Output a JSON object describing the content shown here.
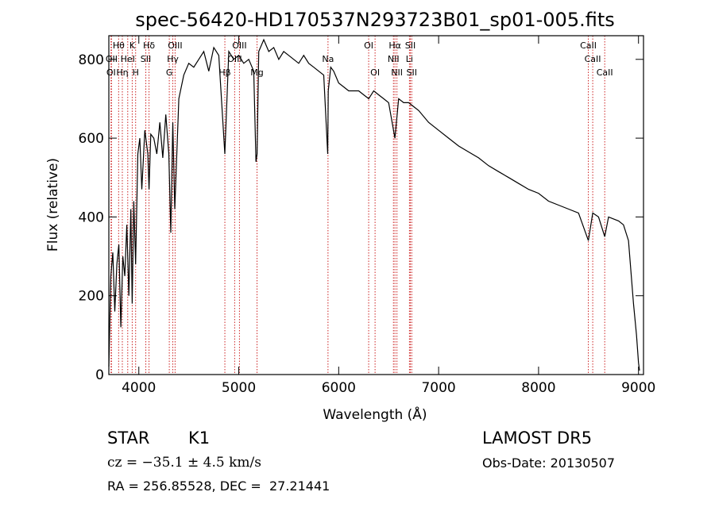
{
  "chart_data": {
    "type": "line",
    "title": "spec-56420-HD170537N293723B01_sp01-005.fits",
    "xlabel": "Wavelength (Å)",
    "ylabel": "Flux (relative)",
    "xlim": [
      3700,
      9050
    ],
    "ylim": [
      0,
      860
    ],
    "xticks": [
      4000,
      5000,
      6000,
      7000,
      8000,
      9000
    ],
    "yticks": [
      0,
      200,
      400,
      600,
      800
    ],
    "grid": false,
    "series": [
      {
        "x": [
          3700,
          3720,
          3740,
          3760,
          3780,
          3800,
          3820,
          3840,
          3860,
          3880,
          3900,
          3920,
          3934,
          3950,
          3968,
          3990,
          4010,
          4030,
          4060,
          4090,
          4102,
          4120,
          4150,
          4180,
          4210,
          4240,
          4270,
          4300,
          4320,
          4340,
          4360,
          4400,
          4450,
          4500,
          4550,
          4600,
          4650,
          4700,
          4750,
          4800,
          4861,
          4900,
          4950,
          5000,
          5050,
          5100,
          5150,
          5172,
          5183,
          5200,
          5250,
          5300,
          5350,
          5400,
          5450,
          5500,
          5550,
          5600,
          5650,
          5700,
          5750,
          5800,
          5850,
          5890,
          5896,
          5920,
          5950,
          6000,
          6050,
          6100,
          6150,
          6200,
          6250,
          6300,
          6350,
          6400,
          6450,
          6500,
          6563,
          6600,
          6650,
          6700,
          6750,
          6800,
          6900,
          7000,
          7100,
          7200,
          7300,
          7400,
          7500,
          7600,
          7700,
          7800,
          7900,
          8000,
          8100,
          8200,
          8300,
          8400,
          8498,
          8542,
          8600,
          8662,
          8700,
          8750,
          8800,
          8850,
          8900,
          8950,
          8980,
          9000,
          9010
        ],
        "y": [
          20,
          250,
          310,
          160,
          280,
          330,
          120,
          300,
          250,
          380,
          200,
          420,
          180,
          440,
          280,
          560,
          600,
          470,
          620,
          560,
          470,
          610,
          600,
          560,
          640,
          550,
          660,
          560,
          360,
          640,
          420,
          700,
          760,
          790,
          780,
          800,
          820,
          770,
          830,
          810,
          560,
          820,
          800,
          810,
          790,
          800,
          770,
          540,
          560,
          820,
          850,
          820,
          830,
          800,
          820,
          810,
          800,
          790,
          810,
          790,
          780,
          770,
          760,
          560,
          720,
          780,
          770,
          740,
          730,
          720,
          720,
          720,
          710,
          700,
          720,
          710,
          700,
          690,
          600,
          700,
          690,
          690,
          680,
          670,
          640,
          620,
          600,
          580,
          565,
          550,
          530,
          515,
          500,
          485,
          470,
          460,
          440,
          430,
          420,
          410,
          340,
          410,
          400,
          350,
          400,
          395,
          390,
          380,
          340,
          180,
          100,
          30,
          10
        ]
      }
    ],
    "line_labels": [
      {
        "label": "Hθ",
        "wavelength": 3798,
        "row": 1
      },
      {
        "label": "K",
        "wavelength": 3934,
        "row": 1
      },
      {
        "label": "Hδ",
        "wavelength": 4102,
        "row": 1
      },
      {
        "label": "OIII",
        "wavelength": 4363,
        "row": 1
      },
      {
        "label": "OIII",
        "wavelength": 5007,
        "row": 1
      },
      {
        "label": "OI",
        "wavelength": 6300,
        "row": 1
      },
      {
        "label": "Hα",
        "wavelength": 6563,
        "row": 1
      },
      {
        "label": "SII",
        "wavelength": 6717,
        "row": 1
      },
      {
        "label": "CaII",
        "wavelength": 8498,
        "row": 1
      },
      {
        "label": "OII",
        "wavelength": 3727,
        "row": 2
      },
      {
        "label": "HeI",
        "wavelength": 3889,
        "row": 2
      },
      {
        "label": "SII",
        "wavelength": 4070,
        "row": 2
      },
      {
        "label": "Hγ",
        "wavelength": 4340,
        "row": 2
      },
      {
        "label": "OIII",
        "wavelength": 4959,
        "row": 2
      },
      {
        "label": "Na",
        "wavelength": 5893,
        "row": 2
      },
      {
        "label": "NII",
        "wavelength": 6548,
        "row": 2
      },
      {
        "label": "Li",
        "wavelength": 6708,
        "row": 2
      },
      {
        "label": "CaII",
        "wavelength": 8542,
        "row": 2
      },
      {
        "label": "OI",
        "wavelength": 3722,
        "row": 3
      },
      {
        "label": "Hη",
        "wavelength": 3835,
        "row": 3
      },
      {
        "label": "H",
        "wavelength": 3968,
        "row": 3
      },
      {
        "label": "G",
        "wavelength": 4305,
        "row": 3
      },
      {
        "label": "Hβ",
        "wavelength": 4861,
        "row": 3
      },
      {
        "label": "Mg",
        "wavelength": 5183,
        "row": 3
      },
      {
        "label": "OI",
        "wavelength": 6364,
        "row": 3
      },
      {
        "label": "NII",
        "wavelength": 6583,
        "row": 3
      },
      {
        "label": "SII",
        "wavelength": 6731,
        "row": 3
      },
      {
        "label": "CaII",
        "wavelength": 8662,
        "row": 3
      }
    ],
    "colors": {
      "spectrum": "#000000",
      "line_markers": "#cc2222",
      "axes": "#000000"
    }
  },
  "info": {
    "object_class": "STAR",
    "subclass": "K1",
    "survey": "LAMOST DR5",
    "redshift_text": "cz = −35.1 ± 4.5 km/s",
    "obs_date": "Obs-Date: 20130507",
    "coords": "RA = 256.85528, DEC =  27.21441"
  }
}
